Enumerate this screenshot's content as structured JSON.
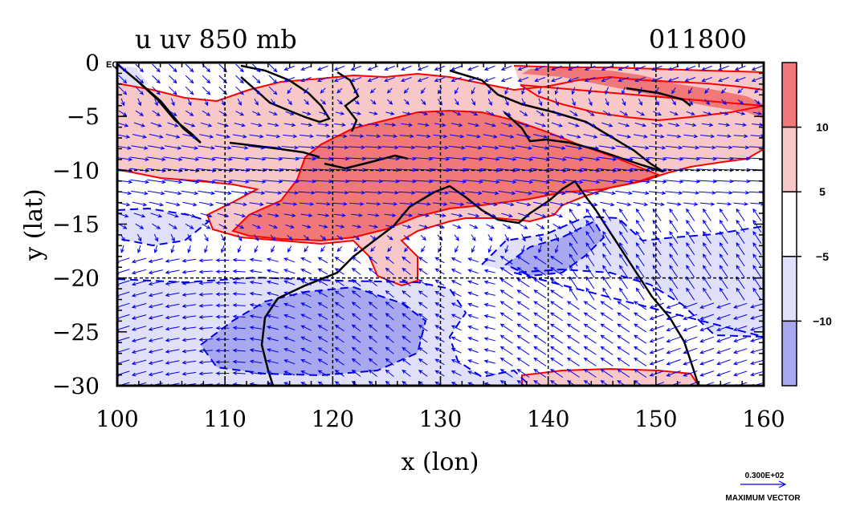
{
  "title": {
    "left": "u uv 850 mb",
    "right": "011800"
  },
  "axes": {
    "xlabel": "x (lon)",
    "ylabel": "y (lat)",
    "xlim": [
      100,
      160
    ],
    "ylim": [
      -30,
      0
    ],
    "xticks": [
      {
        "value": 100,
        "label": "100"
      },
      {
        "value": 110,
        "label": "110"
      },
      {
        "value": 120,
        "label": "120"
      },
      {
        "value": 130,
        "label": "130"
      },
      {
        "value": 140,
        "label": "140"
      },
      {
        "value": 150,
        "label": "150"
      },
      {
        "value": 160,
        "label": "160"
      }
    ],
    "yticks": [
      {
        "value": 0,
        "label": "0"
      },
      {
        "value": -5,
        "label": "−5"
      },
      {
        "value": -10,
        "label": "−10"
      },
      {
        "value": -15,
        "label": "−15"
      },
      {
        "value": -20,
        "label": "−20"
      },
      {
        "value": -25,
        "label": "−25"
      },
      {
        "value": -30,
        "label": "−30"
      }
    ],
    "eq_label": "EQ",
    "grid_lon": [
      110,
      120,
      130,
      140,
      150
    ],
    "grid_lat": [
      -10,
      -20
    ]
  },
  "colorbar": {
    "levels": [
      {
        "range": "> 10",
        "color": "#f07878"
      },
      {
        "range": "5 to 10",
        "color": "#f8c8c8"
      },
      {
        "range": "-5 to 5",
        "color": "#ffffff"
      },
      {
        "range": "-10 to -5",
        "color": "#e0e0fa"
      },
      {
        "range": "< -10",
        "color": "#a8a8f0"
      }
    ],
    "labels": [
      {
        "value": 10,
        "label": "10"
      },
      {
        "value": 5,
        "label": "5"
      },
      {
        "value": -5,
        "label": "−5"
      },
      {
        "value": -10,
        "label": "−10"
      }
    ]
  },
  "vector_key": {
    "value_label": "0.300E+02",
    "caption": "MAXIMUM VECTOR"
  },
  "colors": {
    "positive_contour": "#ff0000",
    "negative_contour": "#0000ee",
    "vector": "#0000ee",
    "coast": "#000000"
  }
}
